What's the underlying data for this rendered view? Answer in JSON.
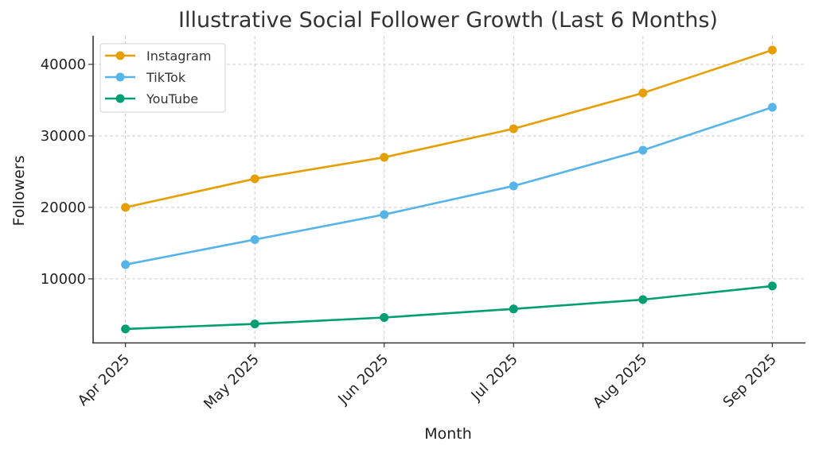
{
  "chart_data": {
    "type": "line",
    "title": "Illustrative Social Follower Growth (Last 6 Months)",
    "xlabel": "Month",
    "ylabel": "Followers",
    "categories": [
      "Apr 2025",
      "May 2025",
      "Jun 2025",
      "Jul 2025",
      "Aug 2025",
      "Sep 2025"
    ],
    "yticks": [
      10000,
      20000,
      30000,
      40000
    ],
    "ytick_labels": [
      "10000",
      "20000",
      "30000",
      "40000"
    ],
    "ylim": [
      1100,
      44000
    ],
    "grid": true,
    "legend_position": "top-left",
    "series": [
      {
        "name": "Instagram",
        "color": "#E69F00",
        "values": [
          20000,
          24000,
          27000,
          31000,
          36000,
          42000
        ]
      },
      {
        "name": "TikTok",
        "color": "#56B4E9",
        "values": [
          12000,
          15500,
          19000,
          23000,
          28000,
          34000
        ]
      },
      {
        "name": "YouTube",
        "color": "#009E73",
        "values": [
          3000,
          3700,
          4600,
          5800,
          7100,
          9000
        ]
      }
    ]
  }
}
